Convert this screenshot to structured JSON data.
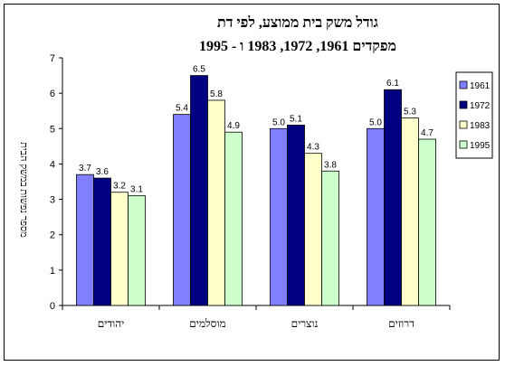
{
  "chart_data": {
    "type": "bar",
    "title": "גודל משק בית ממוצע, לפי דת",
    "subtitle": "מפקדים 1961, 1972, 1983 ו - 1995",
    "ylabel": "מספר נפשות במשק הבית",
    "xlabel": "",
    "ylim": [
      0,
      7
    ],
    "yticks": [
      "0",
      "1",
      "2",
      "3",
      "4",
      "5",
      "6",
      "7"
    ],
    "categories": [
      "יהודים",
      "מוסלמים",
      "נוצרים",
      "דרוזים"
    ],
    "series": [
      {
        "name": "1961",
        "color": "#8080ff",
        "values": [
          3.7,
          5.4,
          5.0,
          5.0
        ],
        "labels": [
          "3.7",
          "5.4",
          "5.0",
          "5.0"
        ]
      },
      {
        "name": "1972",
        "color": "#000080",
        "values": [
          3.6,
          6.5,
          5.1,
          6.1
        ],
        "labels": [
          "3.6",
          "6.5",
          "5.1",
          "6.1"
        ]
      },
      {
        "name": "1983",
        "color": "#ffffcc",
        "values": [
          3.2,
          5.8,
          4.3,
          5.3
        ],
        "labels": [
          "3.2",
          "5.8",
          "4.3",
          "5.3"
        ]
      },
      {
        "name": "1995",
        "color": "#ccffcc",
        "values": [
          3.1,
          4.9,
          3.8,
          4.7
        ],
        "labels": [
          "3.1",
          "4.9",
          "3.8",
          "4.7"
        ]
      }
    ],
    "grid": false,
    "legend_position": "right"
  }
}
